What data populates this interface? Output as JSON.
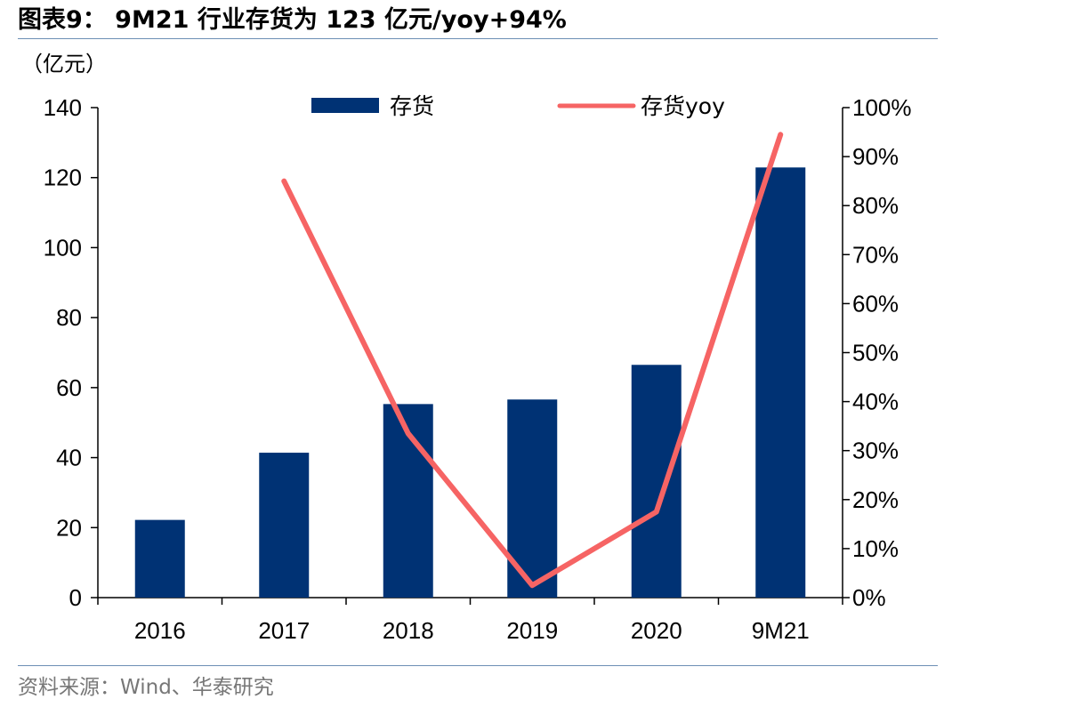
{
  "figure_title": "图表9：  9M21 行业存货为 123 亿元/yoy+94%",
  "source_note": "资料来源：Wind、华泰研究",
  "colors": {
    "bar": "#003274",
    "line": "#f66464",
    "rule": "#6d8fb5"
  },
  "chart_data": {
    "type": "bar",
    "title": "9M21 行业存货为 123 亿元/yoy+94%",
    "categories": [
      "2016",
      "2017",
      "2018",
      "2019",
      "2020",
      "9M21"
    ],
    "series": [
      {
        "name": "存货",
        "type": "bar",
        "axis": "left",
        "values": [
          22.2,
          41.4,
          55.3,
          56.6,
          66.5,
          122.9
        ]
      },
      {
        "name": "存货yoy",
        "type": "line",
        "axis": "right",
        "values": [
          null,
          0.85,
          0.335,
          0.025,
          0.175,
          0.945
        ]
      }
    ],
    "ylabel": "（亿元）",
    "ylim": [
      0,
      140
    ],
    "yticks": [
      "0",
      "20",
      "40",
      "60",
      "80",
      "100",
      "120",
      "140"
    ],
    "y2lim": [
      0,
      1.0
    ],
    "y2ticks": [
      "0%",
      "10%",
      "20%",
      "30%",
      "40%",
      "50%",
      "60%",
      "70%",
      "80%",
      "90%",
      "100%"
    ],
    "legend_position": "top-center",
    "grid": false
  }
}
